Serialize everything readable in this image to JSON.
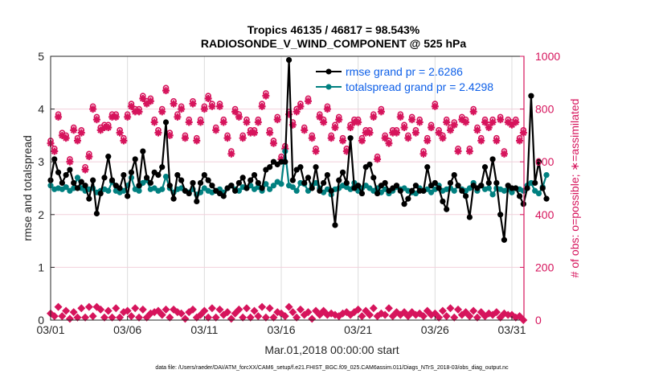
{
  "chart_data": {
    "type": "line",
    "title": "Tropics 46135 / 46817 = 98.543%",
    "subtitle": "RADIOSONDE_V_WIND_COMPONENT @ 525 hPa",
    "xlabel": "Mar.01,2018 00:00:00 start",
    "ylabel": "rmse and totalspread",
    "y2label": "# of obs: o=possible; ∗=assimilated",
    "footer": "data file: /Users/raeder/DAI/ATM_forcXX/CAM6_setup/f.e21.FHIST_BGC.f09_025.CAM6assim.011/Diags_NTrS_2018-03/obs_diag_output.nc",
    "xlim_days": [
      0,
      30.8
    ],
    "ylim": [
      0,
      5
    ],
    "y2lim": [
      0,
      1000
    ],
    "grid": true,
    "x_ticks": [
      {
        "day": 0,
        "label": "03/01"
      },
      {
        "day": 5,
        "label": "03/06"
      },
      {
        "day": 10,
        "label": "03/11"
      },
      {
        "day": 15,
        "label": "03/16"
      },
      {
        "day": 20,
        "label": "03/21"
      },
      {
        "day": 25,
        "label": "03/26"
      },
      {
        "day": 30,
        "label": "03/31"
      }
    ],
    "y_ticks": [
      {
        "value": 0,
        "label": "0"
      },
      {
        "value": 1,
        "label": "1"
      },
      {
        "value": 2,
        "label": "2"
      },
      {
        "value": 3,
        "label": "3"
      },
      {
        "value": 4,
        "label": "4"
      },
      {
        "value": 5,
        "label": "5"
      }
    ],
    "y2_ticks": [
      {
        "value": 0,
        "label": "0"
      },
      {
        "value": 200,
        "label": "200"
      },
      {
        "value": 400,
        "label": "400"
      },
      {
        "value": 600,
        "label": "600"
      },
      {
        "value": 800,
        "label": "800"
      },
      {
        "value": 1000,
        "label": "1000"
      }
    ],
    "legend": {
      "placement": "top-right",
      "entries": [
        {
          "label": "rmse grand pr = 2.6286",
          "color": "#000000"
        },
        {
          "label": "totalspread grand pr = 2.4298",
          "color": "#008080"
        }
      ]
    },
    "x_step_days": 0.25,
    "series": [
      {
        "name": "rmse",
        "color": "#000000",
        "values": [
          2.65,
          3.05,
          2.8,
          2.6,
          2.75,
          2.85,
          2.6,
          2.5,
          2.62,
          2.55,
          2.3,
          2.65,
          2.02,
          2.4,
          2.7,
          3.1,
          2.65,
          2.55,
          2.5,
          2.75,
          2.35,
          2.8,
          3.05,
          2.55,
          3.2,
          2.7,
          2.6,
          2.8,
          2.75,
          2.9,
          3.75,
          2.55,
          2.3,
          2.75,
          2.65,
          2.45,
          2.4,
          2.6,
          2.25,
          2.6,
          2.75,
          2.65,
          2.55,
          2.45,
          2.4,
          2.35,
          2.5,
          2.55,
          2.45,
          2.6,
          2.7,
          2.5,
          2.65,
          2.75,
          2.6,
          2.5,
          2.85,
          2.9,
          3.0,
          2.95,
          3.0,
          3.0,
          4.93,
          2.65,
          2.85,
          2.9,
          2.6,
          2.7,
          2.5,
          2.9,
          2.45,
          2.6,
          2.75,
          2.45,
          1.8,
          2.65,
          2.8,
          2.6,
          3.45,
          2.5,
          2.55,
          2.4,
          2.9,
          2.95,
          2.7,
          2.4,
          2.55,
          2.6,
          2.45,
          2.5,
          2.55,
          2.45,
          2.2,
          2.3,
          2.45,
          2.55,
          2.45,
          2.45,
          2.9,
          2.55,
          2.6,
          2.5,
          2.25,
          2.1,
          2.6,
          2.75,
          2.55,
          2.45,
          2.35,
          1.95,
          2.55,
          2.5,
          2.55,
          2.9,
          2.6,
          3.05,
          2.6,
          2.0,
          1.52,
          2.55,
          2.5,
          2.5,
          2.35,
          2.2,
          2.5,
          4.25,
          2.6,
          3.0,
          2.5,
          2.3
        ]
      },
      {
        "name": "totalspread",
        "color": "#008080",
        "values": [
          2.55,
          2.48,
          2.5,
          2.48,
          2.52,
          2.45,
          2.5,
          2.7,
          2.5,
          2.45,
          2.48,
          2.5,
          2.42,
          2.45,
          2.48,
          2.45,
          2.62,
          2.45,
          2.42,
          2.45,
          2.55,
          2.7,
          2.48,
          2.45,
          2.6,
          2.65,
          2.48,
          2.5,
          2.45,
          2.48,
          2.72,
          2.5,
          2.42,
          2.48,
          2.5,
          2.45,
          2.42,
          2.48,
          2.38,
          2.42,
          2.5,
          2.45,
          2.42,
          2.45,
          2.48,
          2.42,
          2.5,
          2.55,
          2.48,
          2.45,
          2.52,
          2.5,
          2.55,
          2.48,
          2.52,
          2.45,
          2.58,
          2.48,
          2.55,
          2.62,
          2.58,
          3.2,
          2.55,
          2.52,
          2.45,
          2.6,
          2.58,
          2.45,
          2.55,
          2.6,
          2.5,
          2.42,
          2.48,
          2.38,
          2.48,
          2.5,
          2.55,
          2.52,
          2.48,
          2.6,
          2.45,
          2.5,
          2.55,
          2.5,
          2.45,
          2.5,
          2.42,
          2.48,
          2.4,
          2.45,
          2.52,
          2.48,
          2.5,
          2.45,
          2.42,
          2.4,
          2.5,
          2.45,
          2.48,
          2.42,
          2.48,
          2.55,
          2.45,
          2.48,
          2.5,
          2.45,
          2.55,
          2.48,
          2.45,
          2.5,
          2.6,
          2.45,
          2.55,
          2.48,
          2.5,
          2.38,
          2.5,
          2.48,
          2.45,
          2.48,
          2.42,
          2.5,
          2.48,
          2.45,
          2.55,
          2.6,
          2.45,
          2.4,
          2.52,
          2.75
        ]
      },
      {
        "name": "obs_possible",
        "axis": "right",
        "marker": "o",
        "color": "#d6145c",
        "values": [
          680,
          650,
          780,
          710,
          700,
          610,
          730,
          690,
          720,
          580,
          630,
          810,
          770,
          730,
          740,
          740,
          780,
          780,
          720,
          690,
          780,
          820,
          800,
          800,
          850,
          830,
          840,
          760,
          720,
          800,
          880,
          710,
          830,
          780,
          810,
          700,
          760,
          830,
          690,
          760,
          810,
          850,
          820,
          730,
          820,
          760,
          700,
          640,
          800,
          780,
          700,
          760,
          720,
          720,
          760,
          820,
          860,
          720,
          680,
          770,
          620,
          660,
          790,
          750,
          800,
          820,
          730,
          840,
          700,
          650,
          780,
          760,
          810,
          700,
          740,
          770,
          690,
          650,
          740,
          760,
          760,
          690,
          720,
          720,
          780,
          620,
          800,
          700,
          680,
          720,
          720,
          780,
          740,
          700,
          770,
          720,
          760,
          640,
          690,
          740,
          820,
          720,
          700,
          760,
          730,
          750,
          650,
          770,
          760,
          650,
          800,
          730,
          690,
          760,
          740,
          760,
          690,
          770,
          640,
          760,
          750,
          760,
          690,
          720
        ]
      },
      {
        "name": "obs_assimilated",
        "axis": "right",
        "marker": "*",
        "color": "#d6145c",
        "values": [
          670,
          640,
          770,
          700,
          690,
          600,
          720,
          680,
          710,
          570,
          620,
          800,
          760,
          720,
          730,
          730,
          770,
          770,
          710,
          680,
          770,
          810,
          790,
          790,
          840,
          820,
          830,
          750,
          710,
          790,
          870,
          700,
          820,
          770,
          800,
          690,
          750,
          820,
          680,
          750,
          800,
          840,
          810,
          720,
          810,
          750,
          690,
          630,
          790,
          770,
          690,
          750,
          710,
          710,
          750,
          810,
          850,
          710,
          670,
          760,
          610,
          650,
          780,
          740,
          790,
          810,
          720,
          830,
          690,
          640,
          770,
          750,
          800,
          690,
          730,
          760,
          680,
          640,
          730,
          750,
          750,
          680,
          710,
          710,
          770,
          610,
          790,
          690,
          670,
          710,
          710,
          770,
          730,
          690,
          760,
          710,
          750,
          630,
          680,
          730,
          810,
          710,
          690,
          750,
          720,
          740,
          640,
          760,
          750,
          640,
          790,
          720,
          680,
          750,
          730,
          750,
          680,
          760,
          630,
          750,
          740,
          750,
          680,
          710
        ]
      },
      {
        "name": "obs_zero_level",
        "axis": "right",
        "marker": "diamond",
        "color": "#d6145c",
        "values": [
          25,
          15,
          50,
          15,
          35,
          5,
          30,
          10,
          45,
          10,
          50,
          15,
          50,
          40,
          10,
          35,
          10,
          45,
          10,
          30,
          35,
          15,
          45,
          10,
          40,
          10,
          25,
          30,
          35,
          20,
          40,
          10,
          40,
          30,
          25,
          5,
          30,
          40,
          10,
          20,
          35,
          10,
          45,
          10,
          40,
          20,
          30,
          5,
          25,
          40,
          10,
          45,
          10,
          35,
          15,
          50,
          10,
          45,
          10,
          30,
          25,
          15,
          50,
          30,
          10,
          40,
          20,
          30,
          5,
          35,
          20,
          35,
          20,
          25,
          20,
          15,
          25,
          30,
          20,
          30,
          40,
          15,
          35,
          20,
          45,
          15,
          25,
          20,
          45,
          15,
          30,
          20,
          30,
          15,
          30,
          20,
          25,
          15,
          35,
          20,
          25,
          10,
          35,
          15,
          45,
          10,
          40,
          20,
          30,
          15,
          35,
          10,
          30,
          15,
          25,
          20,
          30,
          10,
          25,
          20,
          20,
          10,
          15,
          0
        ]
      }
    ]
  }
}
